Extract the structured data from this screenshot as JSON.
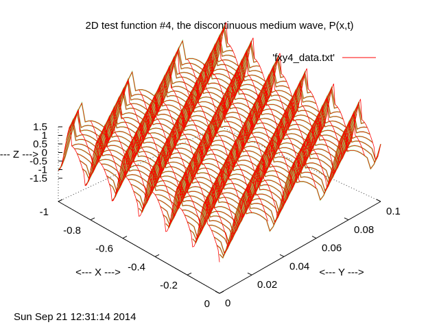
{
  "chart_data": {
    "type": "surface",
    "title": "2D test function #4, the discontinuous medium wave, P(x,t)",
    "xlabel": "<--- X --->",
    "ylabel": "<--- Y --->",
    "zlabel": "<--- Z --->",
    "xlim": [
      -1,
      0
    ],
    "ylim": [
      0,
      0.1
    ],
    "zlim": [
      -1.5,
      1.5
    ],
    "x_ticks": [
      "-1",
      "-0.8",
      "-0.6",
      "-0.4",
      "-0.2",
      "0"
    ],
    "y_ticks": [
      "0",
      "0.02",
      "0.04",
      "0.06",
      "0.08",
      "0.1"
    ],
    "z_ticks": [
      "1.5",
      "1",
      "0.5",
      "0",
      "-0.5",
      "-1",
      "-1.5"
    ],
    "legend": {
      "label": "'fxy4_data.txt'",
      "position": "top-right"
    },
    "colors": {
      "surface_top": "#ff0000",
      "surface_bottom": "#00ff00",
      "axes": "#000000"
    },
    "grid": false,
    "footer": "Sun Sep 21 12:31:14 2014"
  }
}
